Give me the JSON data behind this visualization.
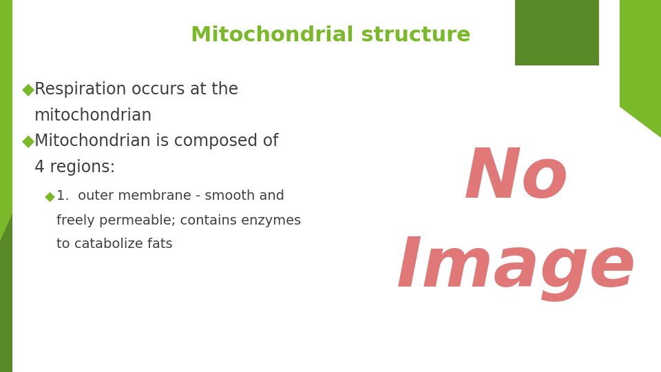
{
  "title": "Mitochondrial structure",
  "title_color": "#7ab929",
  "title_fontsize": 22,
  "background_color": "#ffffff",
  "left_bar_color": "#7ab929",
  "bullet_color": "#7ab929",
  "bullet_char": "◆",
  "text_color": "#404040",
  "no_color": "#e07878",
  "image_color": "#e07878",
  "lines": [
    {
      "text": "Respiration occurs at the",
      "level": 0,
      "bullet": true
    },
    {
      "text": "mitochondrian",
      "level": 0,
      "bullet": false
    },
    {
      "text": "Mitochondrian is composed of",
      "level": 0,
      "bullet": true
    },
    {
      "text": "4 regions:",
      "level": 0,
      "bullet": false
    },
    {
      "text": "1.  outer membrane - smooth and",
      "level": 1,
      "bullet": true
    },
    {
      "text": "freely permeable; contains enzymes",
      "level": 1,
      "bullet": false
    },
    {
      "text": "to catabolize fats",
      "level": 1,
      "bullet": false
    }
  ],
  "main_fontsize": 17,
  "sub_fontsize": 14,
  "dark_green": "#5a8a28",
  "light_green": "#7ab929",
  "mid_green": "#6aaa30"
}
